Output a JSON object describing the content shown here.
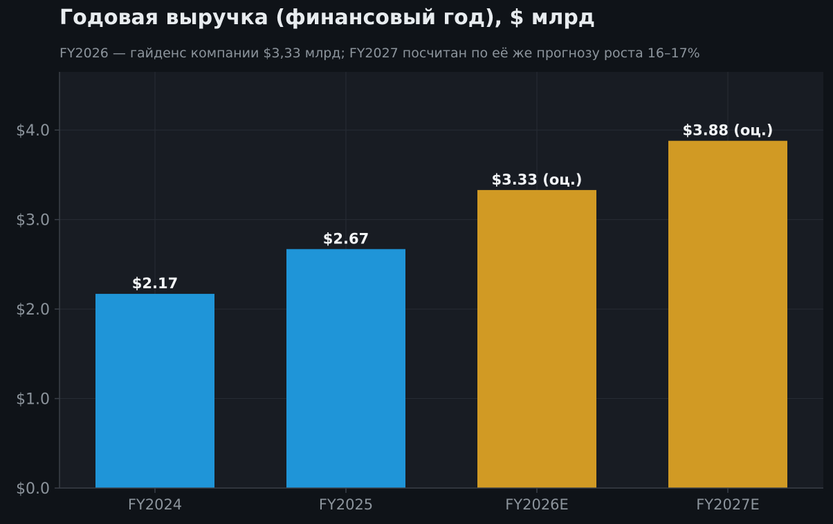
{
  "chart_data": {
    "type": "bar",
    "title": "Годовая выручка (финансовый год), $ млрд",
    "subtitle": "FY2026 — гайденс компании $3,33 млрд; FY2027 посчитан по её же прогнозу роста 16–17%",
    "categories": [
      "FY2024",
      "FY2025",
      "FY2026E",
      "FY2027E"
    ],
    "values": [
      2.17,
      2.67,
      3.33,
      3.88
    ],
    "value_labels": [
      "$2.17",
      "$2.67",
      "$3.33 (оц.)",
      "$3.88 (оц.)"
    ],
    "bar_colors": [
      "#1f95d8",
      "#1f95d8",
      "#d19a24",
      "#d19a24"
    ],
    "ylim": [
      0,
      4.65
    ],
    "yticks": [
      0,
      1,
      2,
      3,
      4
    ],
    "ytick_labels": [
      "$0.0",
      "$1.0",
      "$2.0",
      "$3.0",
      "$4.0"
    ],
    "grid": true,
    "colors": {
      "background": "#0f1318",
      "plot_background": "#181c23",
      "grid": "#272c34",
      "axis": "#3a4048",
      "text_muted": "#8c949c",
      "text_strong": "#f2f4f6"
    }
  }
}
